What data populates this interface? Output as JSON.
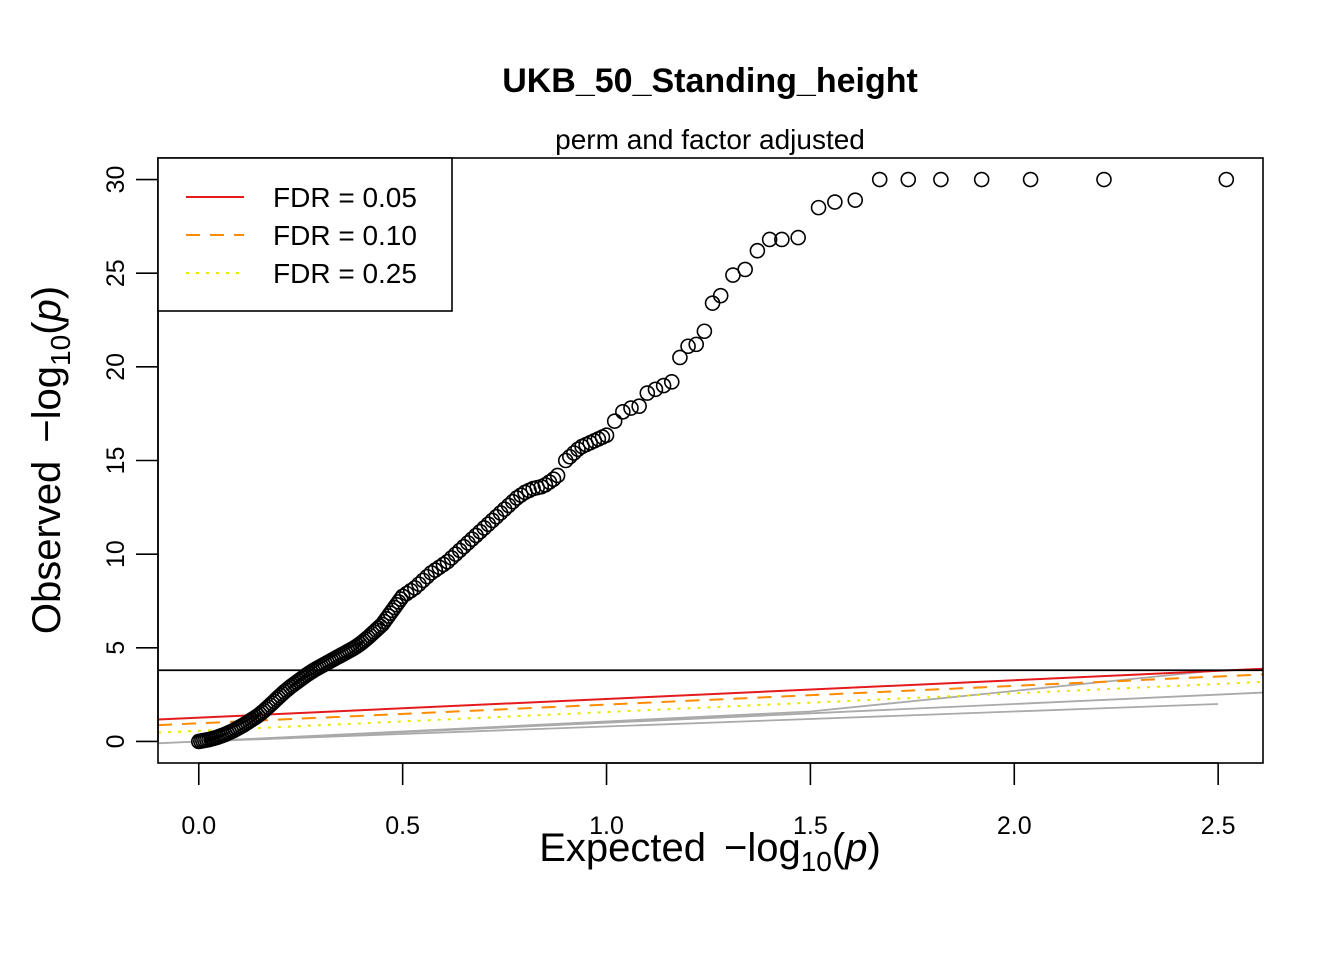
{
  "chart_data": {
    "type": "scatter",
    "title": "UKB_50_Standing_height",
    "subtitle": "perm and factor adjusted",
    "xlabel": {
      "prefix": "Expected",
      "minus": "−",
      "log": "log",
      "sub": "10",
      "open": "(",
      "var": "p",
      "close": ")"
    },
    "ylabel": {
      "prefix": "Observed",
      "minus": "−",
      "log": "log",
      "sub": "10",
      "open": "(",
      "var": "p",
      "close": ")"
    },
    "xlim": [
      -0.1,
      2.61
    ],
    "ylim": [
      -1.15,
      31.15
    ],
    "xticks": [
      {
        "value": 0.0,
        "label": "0.0"
      },
      {
        "value": 0.5,
        "label": "0.5"
      },
      {
        "value": 1.0,
        "label": "1.0"
      },
      {
        "value": 1.5,
        "label": "1.5"
      },
      {
        "value": 2.0,
        "label": "2.0"
      },
      {
        "value": 2.5,
        "label": "2.5"
      }
    ],
    "yticks": [
      {
        "value": 0,
        "label": "0"
      },
      {
        "value": 5,
        "label": "5"
      },
      {
        "value": 10,
        "label": "10"
      },
      {
        "value": 15,
        "label": "15"
      },
      {
        "value": 20,
        "label": "20"
      },
      {
        "value": 25,
        "label": "25"
      },
      {
        "value": 30,
        "label": "30"
      }
    ],
    "legend": {
      "position": "top-left",
      "entries": [
        {
          "label": "FDR = 0.05",
          "color": "#e41a1c",
          "dash": "solid"
        },
        {
          "label": "FDR = 0.10",
          "color": "#ff8c00",
          "dash": "dashed"
        },
        {
          "label": "FDR = 0.25",
          "color": "#e8e800",
          "dash": "dotted"
        }
      ]
    },
    "threshold_line": {
      "y": 3.8,
      "color": "#000000"
    },
    "fdr_lines": [
      {
        "name": "FDR = 0.05",
        "color": "#e41a1c",
        "dash": "solid",
        "x": [
          -0.1,
          2.61
        ],
        "y": [
          1.17,
          3.88
        ]
      },
      {
        "name": "FDR = 0.10",
        "color": "#ff8c00",
        "dash": "dashed",
        "x": [
          -0.1,
          2.61
        ],
        "y": [
          0.87,
          3.58
        ]
      },
      {
        "name": "FDR = 0.25",
        "color": "#e8e800",
        "dash": "dotted",
        "x": [
          -0.1,
          2.61
        ],
        "y": [
          0.47,
          3.18
        ]
      }
    ],
    "reference_lines": [
      {
        "color": "#aaaaaa",
        "x": [
          -0.1,
          2.61
        ],
        "y": [
          -0.1,
          2.61
        ]
      },
      {
        "color": "#aaaaaa",
        "x": [
          0.0,
          1.5,
          2.5
        ],
        "y": [
          0.0,
          1.6,
          3.8
        ]
      },
      {
        "color": "#aaaaaa",
        "x": [
          0.0,
          2.5
        ],
        "y": [
          0.0,
          2.0
        ]
      }
    ],
    "points": {
      "x": [
        0.0,
        0.005,
        0.01,
        0.015,
        0.02,
        0.025,
        0.03,
        0.035,
        0.04,
        0.045,
        0.05,
        0.055,
        0.06,
        0.065,
        0.07,
        0.075,
        0.08,
        0.085,
        0.09,
        0.095,
        0.1,
        0.105,
        0.11,
        0.115,
        0.12,
        0.125,
        0.13,
        0.135,
        0.14,
        0.145,
        0.15,
        0.155,
        0.16,
        0.165,
        0.17,
        0.175,
        0.18,
        0.185,
        0.19,
        0.195,
        0.2,
        0.205,
        0.21,
        0.215,
        0.22,
        0.225,
        0.23,
        0.235,
        0.24,
        0.245,
        0.25,
        0.255,
        0.26,
        0.265,
        0.27,
        0.275,
        0.28,
        0.285,
        0.29,
        0.295,
        0.3,
        0.305,
        0.31,
        0.315,
        0.32,
        0.325,
        0.33,
        0.335,
        0.34,
        0.345,
        0.35,
        0.355,
        0.36,
        0.365,
        0.37,
        0.375,
        0.38,
        0.385,
        0.39,
        0.395,
        0.4,
        0.405,
        0.41,
        0.415,
        0.42,
        0.425,
        0.43,
        0.435,
        0.44,
        0.445,
        0.45,
        0.455,
        0.46,
        0.465,
        0.47,
        0.475,
        0.48,
        0.485,
        0.49,
        0.495,
        0.5,
        0.51,
        0.52,
        0.53,
        0.54,
        0.55,
        0.56,
        0.57,
        0.58,
        0.59,
        0.6,
        0.61,
        0.62,
        0.63,
        0.64,
        0.65,
        0.66,
        0.67,
        0.68,
        0.69,
        0.7,
        0.71,
        0.72,
        0.73,
        0.74,
        0.75,
        0.76,
        0.77,
        0.78,
        0.79,
        0.8,
        0.81,
        0.82,
        0.83,
        0.84,
        0.85,
        0.86,
        0.87,
        0.88,
        0.9,
        0.91,
        0.92,
        0.93,
        0.94,
        0.95,
        0.96,
        0.97,
        0.98,
        0.99,
        1.0,
        1.02,
        1.04,
        1.06,
        1.08,
        1.1,
        1.12,
        1.14,
        1.16,
        1.18,
        1.2,
        1.22,
        1.24,
        1.26,
        1.28,
        1.31,
        1.34,
        1.37,
        1.4,
        1.43,
        1.47,
        1.52,
        1.56,
        1.61,
        1.67,
        1.74,
        1.82,
        1.92,
        2.04,
        2.22,
        2.52
      ],
      "y": [
        0.0,
        0.02,
        0.04,
        0.06,
        0.08,
        0.1,
        0.13,
        0.16,
        0.19,
        0.22,
        0.26,
        0.3,
        0.34,
        0.38,
        0.43,
        0.48,
        0.53,
        0.58,
        0.64,
        0.7,
        0.76,
        0.82,
        0.88,
        0.95,
        1.02,
        1.09,
        1.16,
        1.23,
        1.3,
        1.38,
        1.46,
        1.55,
        1.64,
        1.74,
        1.84,
        1.94,
        2.04,
        2.14,
        2.25,
        2.35,
        2.45,
        2.55,
        2.65,
        2.74,
        2.83,
        2.92,
        3.0,
        3.08,
        3.16,
        3.24,
        3.32,
        3.4,
        3.48,
        3.56,
        3.63,
        3.7,
        3.77,
        3.84,
        3.9,
        3.96,
        4.02,
        4.08,
        4.14,
        4.2,
        4.26,
        4.32,
        4.38,
        4.44,
        4.5,
        4.56,
        4.62,
        4.68,
        4.74,
        4.8,
        4.86,
        4.92,
        4.98,
        5.05,
        5.12,
        5.2,
        5.28,
        5.37,
        5.46,
        5.55,
        5.65,
        5.75,
        5.85,
        5.95,
        6.05,
        6.15,
        6.25,
        6.4,
        6.55,
        6.7,
        6.85,
        7.0,
        7.15,
        7.3,
        7.45,
        7.6,
        7.75,
        7.9,
        8.05,
        8.2,
        8.4,
        8.6,
        8.8,
        9.0,
        9.15,
        9.3,
        9.45,
        9.6,
        9.8,
        10.0,
        10.2,
        10.4,
        10.6,
        10.8,
        11.0,
        11.2,
        11.4,
        11.6,
        11.8,
        12.0,
        12.2,
        12.4,
        12.6,
        12.8,
        13.0,
        13.15,
        13.3,
        13.4,
        13.5,
        13.55,
        13.6,
        13.7,
        13.85,
        14.0,
        14.2,
        15.0,
        15.2,
        15.4,
        15.6,
        15.75,
        15.85,
        15.95,
        16.05,
        16.15,
        16.25,
        16.35,
        17.1,
        17.6,
        17.8,
        17.9,
        18.6,
        18.8,
        19.0,
        19.2,
        20.5,
        21.1,
        21.2,
        21.9,
        23.4,
        23.8,
        24.9,
        25.2,
        26.2,
        26.8,
        26.8,
        26.9,
        28.5,
        28.8,
        28.9,
        30.0,
        30.0,
        30.0,
        30.0,
        30.0,
        30.0,
        30.0
      ]
    }
  }
}
